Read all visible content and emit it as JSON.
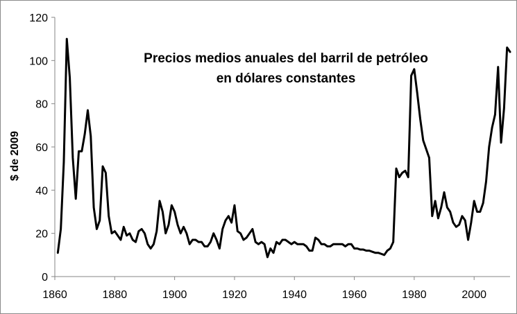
{
  "chart_data": {
    "type": "line",
    "title_line1": "Precios medios anuales del  barril de petróleo",
    "title_line2": "en dólares constantes",
    "xlabel": "",
    "ylabel": "$ de 2009",
    "xlim": [
      1860,
      2012
    ],
    "ylim": [
      0,
      120
    ],
    "x_ticks": [
      1860,
      1880,
      1900,
      1920,
      1940,
      1960,
      1980,
      2000
    ],
    "y_ticks": [
      0,
      20,
      40,
      60,
      80,
      100,
      120
    ],
    "grid": false,
    "legend": "none",
    "line_color": "#000000",
    "series": [
      {
        "x": [
          1861,
          1862,
          1863,
          1864,
          1865,
          1866,
          1867,
          1868,
          1869,
          1870,
          1871,
          1872,
          1873,
          1874,
          1875,
          1876,
          1877,
          1878,
          1879,
          1880,
          1881,
          1882,
          1883,
          1884,
          1885,
          1886,
          1887,
          1888,
          1889,
          1890,
          1891,
          1892,
          1893,
          1894,
          1895,
          1896,
          1897,
          1898,
          1899,
          1900,
          1901,
          1902,
          1903,
          1904,
          1905,
          1906,
          1907,
          1908,
          1909,
          1910,
          1911,
          1912,
          1913,
          1914,
          1915,
          1916,
          1917,
          1918,
          1919,
          1920,
          1921,
          1922,
          1923,
          1924,
          1925,
          1926,
          1927,
          1928,
          1929,
          1930,
          1931,
          1932,
          1933,
          1934,
          1935,
          1936,
          1937,
          1938,
          1939,
          1940,
          1941,
          1942,
          1943,
          1944,
          1945,
          1946,
          1947,
          1948,
          1949,
          1950,
          1951,
          1952,
          1953,
          1954,
          1955,
          1956,
          1957,
          1958,
          1959,
          1960,
          1961,
          1962,
          1963,
          1964,
          1965,
          1966,
          1967,
          1968,
          1969,
          1970,
          1971,
          1972,
          1973,
          1974,
          1975,
          1976,
          1977,
          1978,
          1979,
          1980,
          1981,
          1982,
          1983,
          1984,
          1985,
          1986,
          1987,
          1988,
          1989,
          1990,
          1991,
          1992,
          1993,
          1994,
          1995,
          1996,
          1997,
          1998,
          1999,
          2000,
          2001,
          2002,
          2003,
          2004,
          2005,
          2006,
          2007,
          2008,
          2009,
          2010,
          2011,
          2012
        ],
        "y": [
          11,
          22,
          53,
          110,
          92,
          55,
          36,
          58,
          58,
          66,
          77,
          65,
          32,
          22,
          26,
          51,
          48,
          28,
          20,
          21,
          19,
          17,
          23,
          19,
          20,
          17,
          16,
          21,
          22,
          20,
          15,
          13,
          15,
          21,
          35,
          30,
          20,
          24,
          33,
          30,
          24,
          20,
          23,
          20,
          15,
          17,
          17,
          16,
          16,
          14,
          14,
          16,
          20,
          17,
          13,
          22,
          26,
          28,
          25,
          33,
          21,
          20,
          17,
          18,
          20,
          22,
          16,
          15,
          16,
          15,
          9,
          13,
          11,
          16,
          15,
          17,
          17,
          16,
          15,
          16,
          15,
          15,
          15,
          14,
          12,
          12,
          18,
          17,
          15,
          15,
          14,
          14,
          15,
          15,
          15,
          15,
          14,
          15,
          15,
          13,
          13,
          12.5,
          12.5,
          12,
          12,
          11.5,
          11,
          11,
          10.5,
          10,
          12,
          13,
          16,
          50,
          46,
          48,
          49,
          46,
          93,
          96,
          85,
          73,
          63,
          59,
          55,
          28,
          35,
          27,
          32,
          39,
          32,
          30,
          25,
          23,
          24,
          28,
          26,
          17,
          25,
          35,
          30,
          30,
          34,
          44,
          60,
          69,
          75,
          97,
          62,
          78,
          106,
          104
        ]
      }
    ]
  }
}
